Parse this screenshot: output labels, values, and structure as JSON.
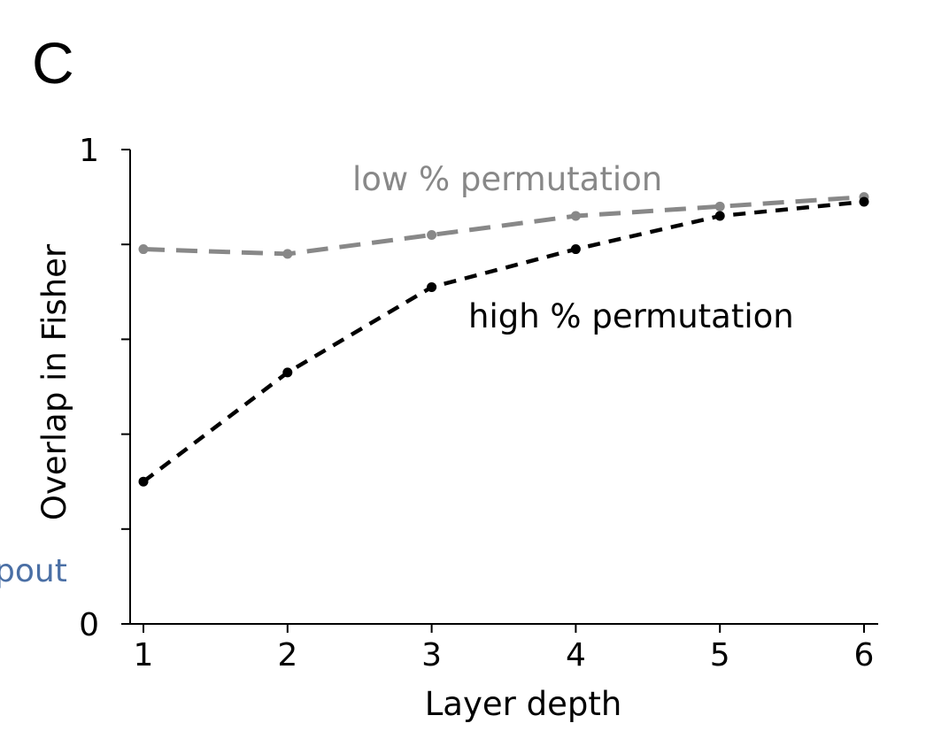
{
  "panel_label": "C",
  "clipped_text": "pout",
  "chart_data": {
    "type": "line",
    "xlabel": "Layer depth",
    "ylabel": "Overlap in Fisher",
    "x": [
      1,
      2,
      3,
      4,
      5,
      6
    ],
    "xticks": [
      "1",
      "2",
      "3",
      "4",
      "5",
      "6"
    ],
    "xlim": [
      0.9,
      6.1
    ],
    "ylim": [
      0,
      1
    ],
    "yticks": [
      0,
      0.2,
      0.4,
      0.6,
      0.8,
      1
    ],
    "ytick_labels": [
      "0",
      "",
      "",
      "",
      "",
      "1"
    ],
    "grid": false,
    "series": [
      {
        "name": "low % permutation",
        "values": [
          0.79,
          0.78,
          0.82,
          0.86,
          0.88,
          0.9
        ],
        "color": "#888888",
        "dash": "long"
      },
      {
        "name": "high % permutation",
        "values": [
          0.3,
          0.53,
          0.71,
          0.79,
          0.86,
          0.89
        ],
        "color": "#000000",
        "dash": "short"
      }
    ],
    "colors": {
      "clipped_text": "#4a6fa5"
    }
  }
}
